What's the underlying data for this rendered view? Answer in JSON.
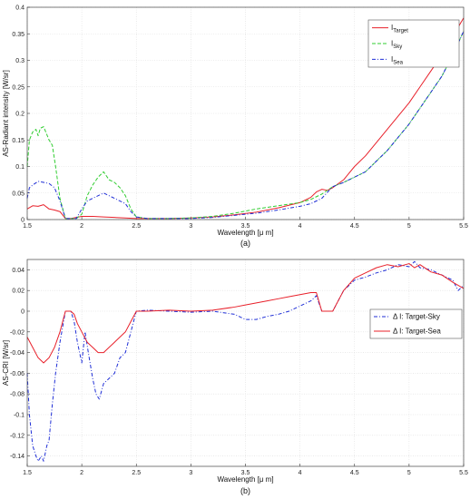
{
  "chart_data": [
    {
      "type": "line",
      "caption": "(a)",
      "xlabel": "Wavelength [μ m]",
      "ylabel": "AS-Radiant intensity [W/sr]",
      "xlim": [
        1.5,
        5.5
      ],
      "ylim": [
        0,
        0.4
      ],
      "xticks": [
        "1.5",
        "2",
        "2.5",
        "3",
        "3.5",
        "4",
        "4.5",
        "5",
        "5.5"
      ],
      "yticks": [
        "0",
        "0.05",
        "0.1",
        "0.15",
        "0.2",
        "0.25",
        "0.3",
        "0.35",
        "0.4"
      ],
      "grid": true,
      "legend_position": "top-right",
      "series": [
        {
          "name": "I",
          "name_sub": "Target",
          "color": "#e8202a",
          "dash": "solid",
          "x": [
            1.5,
            1.55,
            1.6,
            1.65,
            1.7,
            1.75,
            1.8,
            1.85,
            1.9,
            1.95,
            2.0,
            2.1,
            2.2,
            2.3,
            2.4,
            2.5,
            2.6,
            2.8,
            3.0,
            3.2,
            3.4,
            3.6,
            3.8,
            4.0,
            4.1,
            4.15,
            4.2,
            4.25,
            4.3,
            4.4,
            4.5,
            4.6,
            4.7,
            4.8,
            4.9,
            5.0,
            5.1,
            5.2,
            5.3,
            5.4,
            5.5
          ],
          "y": [
            0.02,
            0.026,
            0.025,
            0.028,
            0.02,
            0.018,
            0.015,
            0.002,
            0.002,
            0.004,
            0.006,
            0.006,
            0.005,
            0.004,
            0.003,
            0.002,
            0.002,
            0.002,
            0.003,
            0.005,
            0.009,
            0.014,
            0.022,
            0.032,
            0.042,
            0.052,
            0.057,
            0.055,
            0.06,
            0.075,
            0.1,
            0.12,
            0.145,
            0.17,
            0.195,
            0.22,
            0.25,
            0.28,
            0.31,
            0.345,
            0.38
          ]
        },
        {
          "name": "I",
          "name_sub": "Sky",
          "color": "#32cd32",
          "dash": "dashed",
          "x": [
            1.5,
            1.52,
            1.55,
            1.58,
            1.6,
            1.62,
            1.65,
            1.68,
            1.7,
            1.73,
            1.76,
            1.78,
            1.8,
            1.85,
            1.9,
            1.95,
            2.0,
            2.05,
            2.1,
            2.15,
            2.2,
            2.25,
            2.3,
            2.35,
            2.4,
            2.45,
            2.5,
            2.6,
            2.8,
            3.0,
            3.2,
            3.4,
            3.6,
            3.8,
            4.0,
            4.1,
            4.2,
            4.3,
            4.4,
            4.5,
            4.6,
            4.7,
            4.8,
            4.9,
            5.0,
            5.1,
            5.2,
            5.3,
            5.4,
            5.5
          ],
          "y": [
            0.1,
            0.15,
            0.165,
            0.17,
            0.158,
            0.172,
            0.175,
            0.16,
            0.15,
            0.14,
            0.1,
            0.07,
            0.04,
            0.002,
            0.002,
            0.002,
            0.01,
            0.045,
            0.065,
            0.08,
            0.09,
            0.075,
            0.07,
            0.06,
            0.045,
            0.02,
            0.005,
            0.002,
            0.002,
            0.003,
            0.006,
            0.012,
            0.02,
            0.026,
            0.032,
            0.038,
            0.048,
            0.062,
            0.07,
            0.08,
            0.09,
            0.11,
            0.13,
            0.155,
            0.18,
            0.21,
            0.24,
            0.27,
            0.31,
            0.355
          ]
        },
        {
          "name": "I",
          "name_sub": "Sea",
          "color": "#1f2ed6",
          "dash": "dashdot",
          "x": [
            1.5,
            1.52,
            1.55,
            1.6,
            1.65,
            1.7,
            1.75,
            1.8,
            1.85,
            1.9,
            1.95,
            2.0,
            2.05,
            2.1,
            2.15,
            2.2,
            2.25,
            2.3,
            2.35,
            2.4,
            2.45,
            2.5,
            2.6,
            2.8,
            3.0,
            3.2,
            3.4,
            3.6,
            3.8,
            4.0,
            4.1,
            4.2,
            4.3,
            4.4,
            4.5,
            4.6,
            4.7,
            4.8,
            4.9,
            5.0,
            5.1,
            5.2,
            5.3,
            5.4,
            5.5
          ],
          "y": [
            0.04,
            0.06,
            0.065,
            0.072,
            0.07,
            0.068,
            0.06,
            0.035,
            0.002,
            0.002,
            0.002,
            0.02,
            0.035,
            0.04,
            0.045,
            0.05,
            0.045,
            0.04,
            0.035,
            0.03,
            0.015,
            0.005,
            0.002,
            0.002,
            0.002,
            0.004,
            0.008,
            0.012,
            0.018,
            0.025,
            0.03,
            0.04,
            0.062,
            0.07,
            0.08,
            0.09,
            0.11,
            0.13,
            0.155,
            0.18,
            0.21,
            0.24,
            0.27,
            0.31,
            0.355
          ]
        }
      ]
    },
    {
      "type": "line",
      "caption": "(b)",
      "xlabel": "Wavelength [μ m]",
      "ylabel": "AS-CRI [W/sr]",
      "xlim": [
        1.5,
        5.5
      ],
      "ylim": [
        -0.15,
        0.05
      ],
      "xticks": [
        "1.5",
        "2",
        "2.5",
        "3",
        "3.5",
        "4",
        "4.5",
        "5",
        "5.5"
      ],
      "yticks": [
        "-0.14",
        "-0.12",
        "-0.1",
        "-0.08",
        "-0.06",
        "-0.04",
        "-0.02",
        "0",
        "0.02",
        "0.04"
      ],
      "grid": true,
      "legend_position": "right",
      "series": [
        {
          "name": "Δ I: Target-Sky",
          "color": "#1f2ed6",
          "dash": "dashdot",
          "x": [
            1.5,
            1.52,
            1.55,
            1.58,
            1.6,
            1.63,
            1.65,
            1.68,
            1.7,
            1.73,
            1.76,
            1.8,
            1.85,
            1.9,
            1.93,
            1.96,
            2.0,
            2.03,
            2.06,
            2.1,
            2.13,
            2.16,
            2.2,
            2.25,
            2.3,
            2.35,
            2.4,
            2.45,
            2.5,
            2.6,
            2.8,
            3.0,
            3.2,
            3.4,
            3.5,
            3.6,
            3.7,
            3.8,
            3.9,
            4.0,
            4.1,
            4.15,
            4.2,
            4.3,
            4.4,
            4.5,
            4.6,
            4.7,
            4.8,
            4.9,
            5.0,
            5.05,
            5.1,
            5.2,
            5.3,
            5.4,
            5.45,
            5.5
          ],
          "y": [
            -0.06,
            -0.1,
            -0.13,
            -0.14,
            -0.145,
            -0.14,
            -0.145,
            -0.13,
            -0.125,
            -0.09,
            -0.06,
            -0.03,
            0.0,
            0.0,
            -0.01,
            -0.03,
            -0.05,
            -0.02,
            -0.04,
            -0.065,
            -0.08,
            -0.085,
            -0.07,
            -0.065,
            -0.06,
            -0.045,
            -0.04,
            -0.02,
            0.0,
            0.001,
            0.0,
            -0.001,
            0.0,
            -0.003,
            -0.008,
            -0.008,
            -0.005,
            -0.003,
            0.0,
            0.005,
            0.01,
            0.015,
            0.0,
            0.0,
            0.02,
            0.03,
            0.033,
            0.037,
            0.04,
            0.045,
            0.043,
            0.048,
            0.042,
            0.04,
            0.035,
            0.03,
            0.02,
            0.025
          ]
        },
        {
          "name": "Δ I: Target-Sea",
          "color": "#e8202a",
          "dash": "solid",
          "x": [
            1.5,
            1.55,
            1.6,
            1.65,
            1.7,
            1.75,
            1.8,
            1.85,
            1.9,
            1.93,
            1.96,
            2.0,
            2.05,
            2.1,
            2.15,
            2.2,
            2.3,
            2.4,
            2.45,
            2.5,
            2.6,
            2.8,
            3.0,
            3.2,
            3.4,
            3.5,
            3.6,
            3.7,
            3.8,
            3.9,
            4.0,
            4.1,
            4.15,
            4.2,
            4.3,
            4.4,
            4.5,
            4.6,
            4.7,
            4.8,
            4.9,
            5.0,
            5.05,
            5.1,
            5.2,
            5.3,
            5.4,
            5.5
          ],
          "y": [
            -0.025,
            -0.035,
            -0.045,
            -0.05,
            -0.045,
            -0.035,
            -0.02,
            0.0,
            0.0,
            -0.003,
            -0.012,
            -0.02,
            -0.03,
            -0.035,
            -0.04,
            -0.04,
            -0.03,
            -0.02,
            -0.01,
            0.0,
            0.0,
            0.001,
            0.0,
            0.001,
            0.004,
            0.006,
            0.008,
            0.01,
            0.012,
            0.014,
            0.016,
            0.018,
            0.018,
            0.0,
            0.0,
            0.02,
            0.032,
            0.037,
            0.042,
            0.045,
            0.043,
            0.046,
            0.042,
            0.045,
            0.038,
            0.035,
            0.028,
            0.022
          ]
        }
      ]
    }
  ]
}
